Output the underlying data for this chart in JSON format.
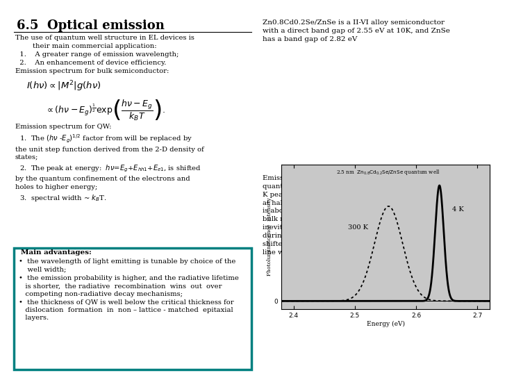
{
  "title": "6.5  Optical emission",
  "bg_color": "#ffffff",
  "box_color": "#008080",
  "right_top_text": "Zn0.8Cd0.2Se/ZnSe is a II-VI alloy semiconductor\nwith a direct band gap of 2.55 eV at 10K, and ZnSe\nhas a band gap of 2.82 eV",
  "right_bottom_text": "Emission spectrum of a 2.5 nm Zn₀.₈Cd₀.₂Se/ZnSe\nquantum well at 10 K and RT.  The spectrum at 10\nK peaks at 2.64 eV(470 nm) and has a full width\nat half maximum of 16 meV.  The emission energy\nis about 0.1 eV larger than the band gap of the\nbulk material, and the line width is limited by the\ninevitable fluctuations in the well width that occur\nduring the epitaxial growth. At RT the peak has\nshifted to 2.55 eV(486 nm) with the broadened\nline width about 2.55 meV(∼ 2k₂T) ."
}
